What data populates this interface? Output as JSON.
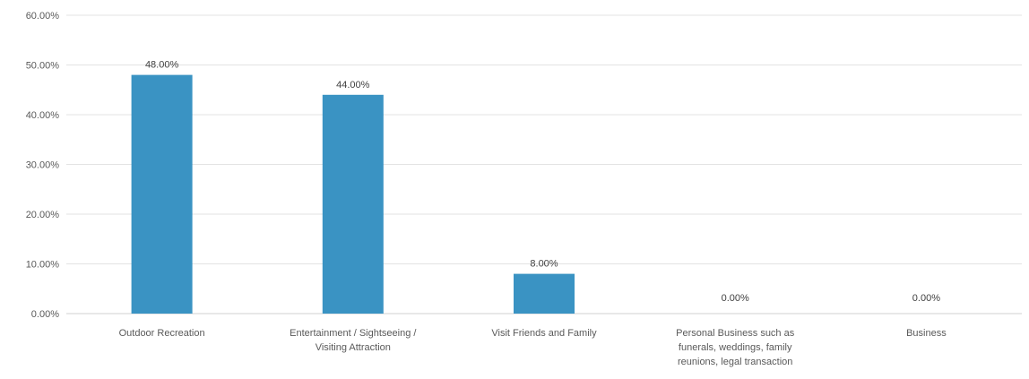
{
  "chart_data": {
    "type": "bar",
    "title": "",
    "xlabel": "",
    "ylabel": "",
    "ylim": [
      0,
      60
    ],
    "y_ticks": [
      "0.00%",
      "10.00%",
      "20.00%",
      "30.00%",
      "40.00%",
      "50.00%",
      "60.00%"
    ],
    "grid": true,
    "bar_color": "#3a93c3",
    "categories": [
      [
        "Outdoor Recreation"
      ],
      [
        "Entertainment / Sightseeing /",
        "Visiting Attraction"
      ],
      [
        "Visit Friends and Family"
      ],
      [
        "Personal Business such as",
        "funerals, weddings, family",
        "reunions, legal transaction"
      ],
      [
        "Business"
      ]
    ],
    "values": [
      48,
      44,
      8,
      0,
      0
    ],
    "data_labels": [
      "48.00%",
      "44.00%",
      "8.00%",
      "0.00%",
      "0.00%"
    ]
  }
}
